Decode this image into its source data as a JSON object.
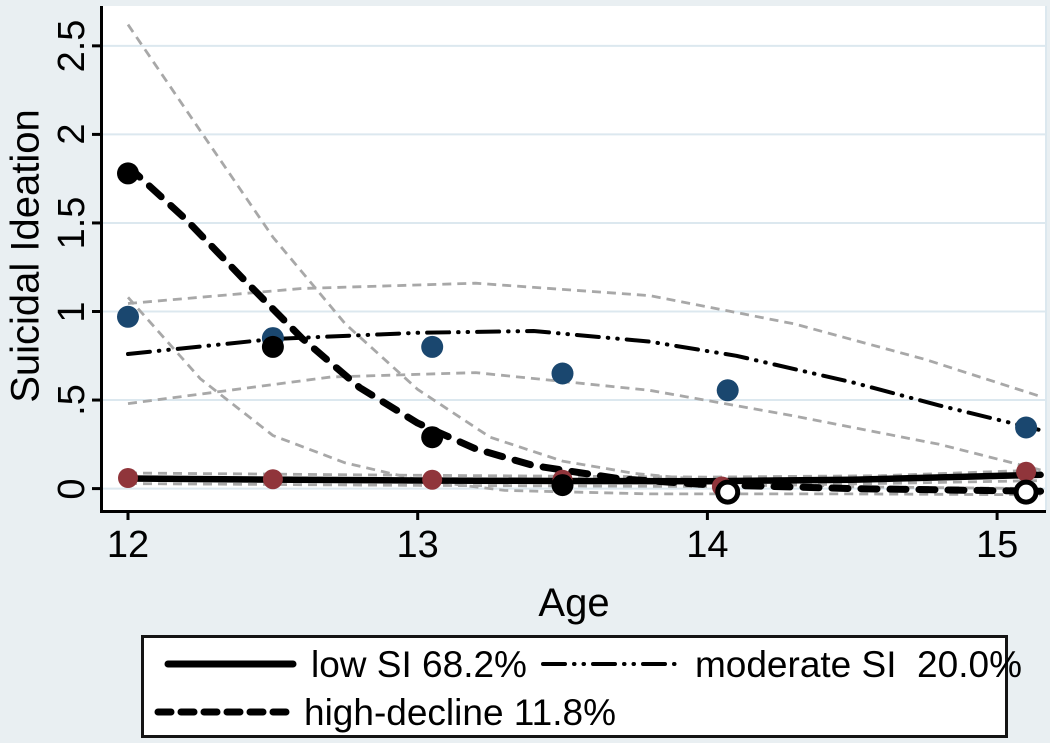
{
  "figure": {
    "background": "#e9eff2",
    "plot_background": "#ffffff",
    "grid_color": "#dce8ef",
    "ci_color": "#a8a8a8",
    "navy": "#1a476f",
    "maroon": "#90353b",
    "black": "#000000"
  },
  "axes": {
    "y_title": "Suicidal Ideation",
    "x_title": "Age",
    "y_tick_labels": [
      "0",
      ".5",
      "1",
      "1.5",
      "2",
      "2.5"
    ],
    "x_tick_labels": [
      "12",
      "13",
      "14",
      "15"
    ]
  },
  "legend": {
    "items": [
      {
        "label": "low SI 68.2%",
        "line_style": "thick-solid",
        "color": "#000000"
      },
      {
        "label": "moderate SI  20.0%",
        "line_style": "dash-dot-dot",
        "color": "#000000"
      },
      {
        "label": "high-decline 11.8%",
        "line_style": "thick-dash",
        "color": "#000000"
      }
    ]
  },
  "chart_data": {
    "type": "line",
    "title": "",
    "xlabel": "Age",
    "ylabel": "Suicidal Ideation",
    "xlim": [
      11.91,
      15.17
    ],
    "ylim": [
      -0.13,
      2.73
    ],
    "x_ticks": [
      12,
      13,
      14,
      15
    ],
    "y_ticks": [
      0,
      0.5,
      1,
      1.5,
      2,
      2.5
    ],
    "grid": "horizontal",
    "legend_position": "bottom",
    "classes": [
      {
        "name": "low SI",
        "share_pct": 68.2
      },
      {
        "name": "moderate SI",
        "share_pct": 20.0
      },
      {
        "name": "high-decline",
        "share_pct": 11.8
      }
    ],
    "series": [
      {
        "id": "low-ci-upper",
        "kind": "line",
        "style": "ci",
        "points": [
          [
            12,
            0.088
          ],
          [
            13,
            0.075
          ],
          [
            14,
            0.065
          ],
          [
            14.6,
            0.073
          ],
          [
            15.15,
            0.105
          ]
        ]
      },
      {
        "id": "low-ci-lower",
        "kind": "line",
        "style": "ci",
        "points": [
          [
            12,
            0.028
          ],
          [
            13,
            0.018
          ],
          [
            14,
            0.012
          ],
          [
            15.15,
            0.045
          ]
        ]
      },
      {
        "id": "moderate-ci-upper",
        "kind": "line",
        "style": "ci",
        "points": [
          [
            12,
            1.045
          ],
          [
            12.6,
            1.13
          ],
          [
            13.2,
            1.16
          ],
          [
            13.8,
            1.09
          ],
          [
            14.3,
            0.93
          ],
          [
            14.75,
            0.73
          ],
          [
            15.15,
            0.52
          ]
        ]
      },
      {
        "id": "moderate-ci-lower",
        "kind": "line",
        "style": "ci",
        "points": [
          [
            12,
            0.48
          ],
          [
            12.7,
            0.63
          ],
          [
            13.2,
            0.655
          ],
          [
            13.8,
            0.555
          ],
          [
            14.3,
            0.41
          ],
          [
            14.8,
            0.25
          ],
          [
            15.15,
            0.105
          ]
        ]
      },
      {
        "id": "high-decline-ci-upper",
        "kind": "line",
        "style": "ci",
        "points": [
          [
            12,
            2.62
          ],
          [
            12.25,
            2.02
          ],
          [
            12.5,
            1.42
          ],
          [
            12.75,
            0.93
          ],
          [
            13,
            0.56
          ],
          [
            13.25,
            0.29
          ],
          [
            13.5,
            0.155
          ],
          [
            13.75,
            0.085
          ],
          [
            14.05,
            0.04
          ],
          [
            14.5,
            0.01
          ],
          [
            15.15,
            0
          ]
        ]
      },
      {
        "id": "high-decline-ci-lower",
        "kind": "line",
        "style": "ci",
        "points": [
          [
            12,
            1.08
          ],
          [
            12.25,
            0.62
          ],
          [
            12.5,
            0.3
          ],
          [
            12.75,
            0.145
          ],
          [
            13,
            0.05
          ],
          [
            13.3,
            -0.01
          ],
          [
            13.8,
            -0.03
          ],
          [
            14.5,
            -0.03
          ],
          [
            15.15,
            -0.035
          ]
        ]
      },
      {
        "id": "moderate-fitted",
        "label": "moderate SI  20.0%",
        "kind": "line",
        "style": "dashdotdot",
        "color": "#000000",
        "width": 4,
        "points": [
          [
            12,
            0.76
          ],
          [
            12.5,
            0.845
          ],
          [
            13,
            0.88
          ],
          [
            13.4,
            0.89
          ],
          [
            13.8,
            0.83
          ],
          [
            14.1,
            0.75
          ],
          [
            14.5,
            0.6
          ],
          [
            14.8,
            0.47
          ],
          [
            15.15,
            0.33
          ]
        ]
      },
      {
        "id": "high-decline-fitted",
        "label": "high-decline 11.8%",
        "kind": "line",
        "style": "heavydash",
        "color": "#000000",
        "width": 7,
        "points": [
          [
            12,
            1.82
          ],
          [
            12.2,
            1.52
          ],
          [
            12.4,
            1.18
          ],
          [
            12.6,
            0.85
          ],
          [
            12.8,
            0.57
          ],
          [
            13,
            0.37
          ],
          [
            13.2,
            0.225
          ],
          [
            13.4,
            0.13
          ],
          [
            13.7,
            0.055
          ],
          [
            14,
            0.022
          ],
          [
            14.5,
            0
          ],
          [
            15.15,
            -0.015
          ]
        ]
      },
      {
        "id": "low-fitted",
        "label": "low SI 68.2%",
        "kind": "line",
        "style": "solid",
        "color": "#000000",
        "width": 6.5,
        "points": [
          [
            12,
            0.057
          ],
          [
            12.5,
            0.051
          ],
          [
            13,
            0.046
          ],
          [
            13.5,
            0.043
          ],
          [
            14,
            0.042
          ],
          [
            14.5,
            0.05
          ],
          [
            15.15,
            0.078
          ]
        ]
      },
      {
        "id": "moderate-observed",
        "kind": "markers",
        "marker": "circle",
        "color": "#1a476f",
        "r": 11,
        "points": [
          [
            12,
            0.97
          ],
          [
            12.5,
            0.85
          ],
          [
            13.05,
            0.8
          ],
          [
            13.5,
            0.65
          ],
          [
            14.07,
            0.555
          ],
          [
            15.1,
            0.345
          ]
        ]
      },
      {
        "id": "low-observed",
        "kind": "markers",
        "marker": "circle",
        "color": "#90353b",
        "r": 10,
        "points": [
          [
            12,
            0.06
          ],
          [
            12.5,
            0.053
          ],
          [
            13.05,
            0.05
          ],
          [
            13.5,
            0.05
          ],
          [
            14.05,
            0.012
          ],
          [
            15.1,
            0.095
          ]
        ]
      },
      {
        "id": "high-decline-observed",
        "kind": "markers",
        "marker": "circle",
        "color": "#000000",
        "r": 11,
        "points": [
          [
            12,
            1.78
          ],
          [
            12.5,
            0.8
          ],
          [
            13.05,
            0.29
          ],
          [
            13.5,
            0.02
          ]
        ]
      },
      {
        "id": "high-decline-observed-open",
        "kind": "markers",
        "marker": "circle-open",
        "color": "#000000",
        "r": 10,
        "points": [
          [
            14.07,
            -0.02
          ],
          [
            15.1,
            -0.02
          ]
        ]
      }
    ]
  }
}
